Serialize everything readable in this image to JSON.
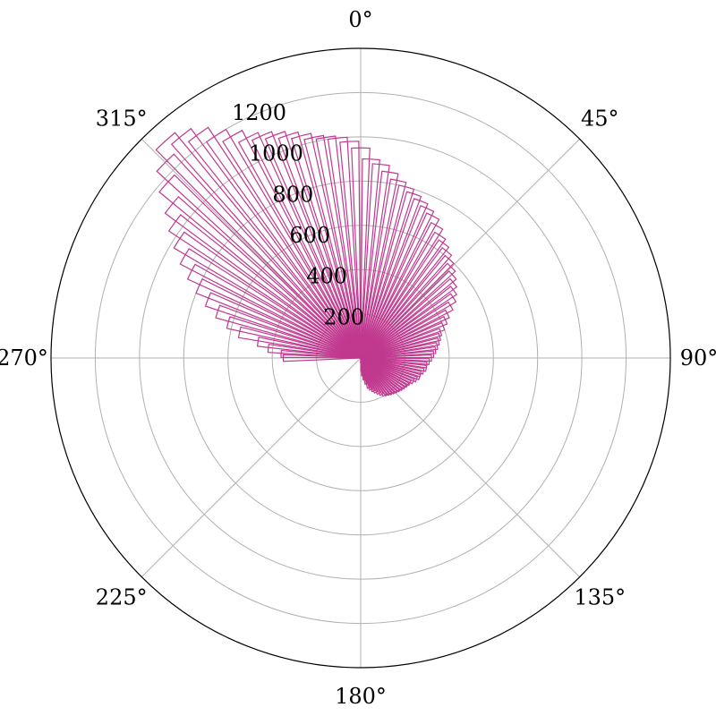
{
  "chart_data": {
    "type": "bar",
    "subtype": "polar",
    "theta_direction": "clockwise",
    "theta_zero": "top",
    "theta_tick_labels": [
      "0°",
      "45°",
      "90°",
      "135°",
      "180°",
      "225°",
      "270°",
      "315°"
    ],
    "r_tick_labels": [
      "200",
      "400",
      "600",
      "800",
      "1000",
      "1200"
    ],
    "r_ticks": [
      200,
      400,
      600,
      800,
      1000,
      1200
    ],
    "rlim": [
      0,
      1400
    ],
    "grid": true,
    "colors": {
      "bars": "#c0398f",
      "grid": "#b0b0b0",
      "frame": "#000000"
    },
    "series": [
      {
        "theta_deg": [
          -90,
          -87,
          -84,
          -81,
          -78,
          -75,
          -72,
          -69,
          -66,
          -63,
          -60,
          -57,
          -54,
          -51,
          -48,
          -45,
          -42,
          -39,
          -36,
          -33,
          -30,
          -27,
          -24,
          -21,
          -18,
          -15,
          -12,
          -9,
          -6,
          -3,
          0,
          3,
          6,
          9,
          12,
          15,
          18,
          21,
          24,
          27,
          30,
          33,
          36,
          39,
          42,
          45,
          48,
          51,
          54,
          57,
          60,
          63,
          66,
          69,
          72,
          75,
          78,
          81,
          84,
          87,
          90,
          93,
          96,
          99,
          102,
          105,
          108,
          111,
          114,
          117,
          120,
          123,
          126,
          129,
          132,
          135,
          138,
          141,
          144,
          147,
          150,
          153,
          156,
          159,
          162,
          165,
          168,
          171,
          174,
          177,
          180
        ],
        "r": [
          350,
          360,
          420,
          470,
          560,
          620,
          680,
          740,
          800,
          860,
          920,
          980,
          1040,
          1100,
          1180,
          1250,
          1320,
          1290,
          1250,
          1200,
          1160,
          1120,
          1100,
          1080,
          1060,
          1040,
          1020,
          1010,
          1000,
          980,
          950,
          900,
          880,
          850,
          820,
          800,
          780,
          760,
          740,
          720,
          690,
          660,
          640,
          620,
          600,
          580,
          560,
          540,
          520,
          500,
          470,
          440,
          420,
          400,
          380,
          370,
          360,
          350,
          340,
          330,
          320,
          310,
          300,
          300,
          290,
          280,
          280,
          270,
          260,
          250,
          245,
          240,
          235,
          230,
          225,
          220,
          215,
          210,
          205,
          200,
          190,
          180,
          170,
          160,
          150,
          140,
          120,
          100,
          80,
          60,
          20
        ]
      }
    ]
  }
}
